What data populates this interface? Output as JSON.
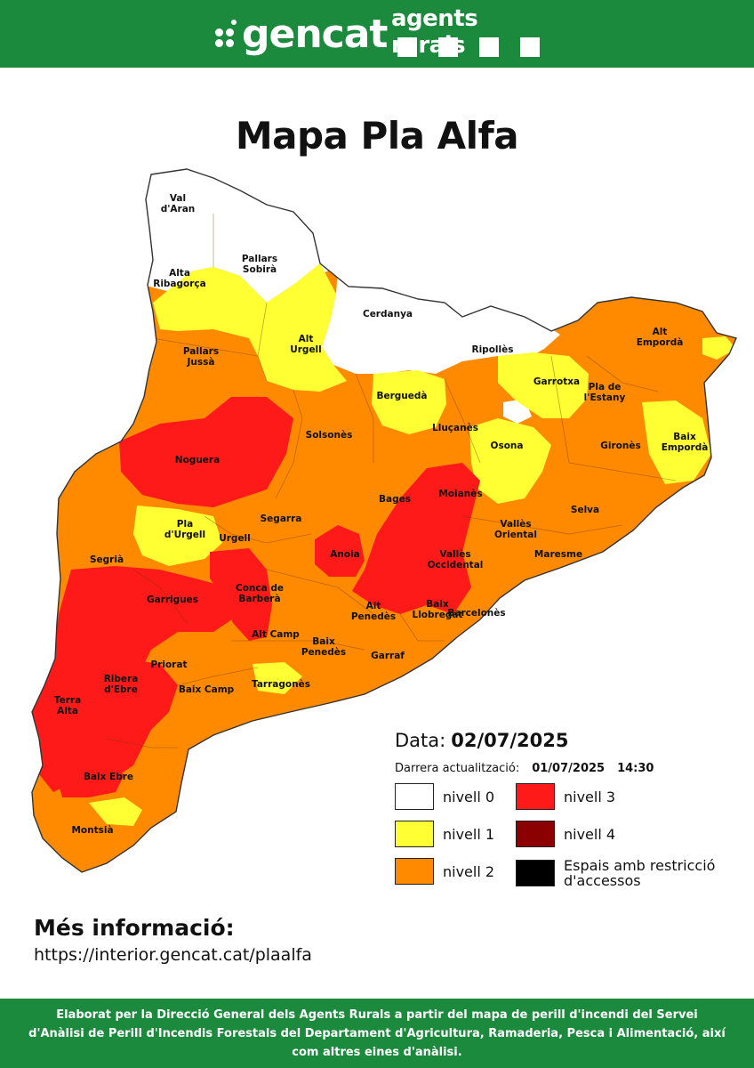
{
  "header": {
    "gencat_logo_text": "gencat",
    "agents_logo_text": "agents rurals"
  },
  "title": "Mapa Pla Alfa",
  "date": {
    "label": "Data:",
    "value": "02/07/2025",
    "update_label": "Darrera actualització:",
    "update_date": "01/07/2025",
    "update_time": "14:30"
  },
  "legend": [
    {
      "label": "nivell 0",
      "color": "#ffffff"
    },
    {
      "label": "nivell 1",
      "color": "#ffff33"
    },
    {
      "label": "nivell 2",
      "color": "#ff8a00"
    },
    {
      "label": "nivell 3",
      "color": "#ff1a1a"
    },
    {
      "label": "nivell 4",
      "color": "#8b0000"
    },
    {
      "label": "Espais amb restricció d'accessos",
      "color": "#000000"
    }
  ],
  "more_info": {
    "title": "Més informació:",
    "url": "https://interior.gencat.cat/plaalfa"
  },
  "footer": {
    "text": "Elaborat per la Direcció General dels Agents Rurals a partir del mapa de perill d'incendi del Servei d'Anàlisi de Perill d'Incendis Forestals del Departament d'Agricultura, Ramaderia, Pesca i Alimentació, així com altres eines d'anàlisi."
  },
  "map": {
    "regions": [
      {
        "name": "Val d'Aran",
        "lines": [
          "Val",
          "d'Aran"
        ]
      },
      {
        "name": "Pallars Sobirà",
        "lines": [
          "Pallars",
          "Sobirà"
        ]
      },
      {
        "name": "Alta Ribagorça",
        "lines": [
          "Alta",
          "Ribagorça"
        ]
      },
      {
        "name": "Cerdanya",
        "lines": [
          "Cerdanya"
        ]
      },
      {
        "name": "Alt Urgell",
        "lines": [
          "Alt",
          "Urgell"
        ]
      },
      {
        "name": "Ripollès",
        "lines": [
          "Ripollès"
        ]
      },
      {
        "name": "Alt Empordà",
        "lines": [
          "Alt",
          "Empordà"
        ]
      },
      {
        "name": "Pallars Jussà",
        "lines": [
          "Pallars",
          "Jussà"
        ]
      },
      {
        "name": "Berguedà",
        "lines": [
          "Berguedà"
        ]
      },
      {
        "name": "Garrotxa",
        "lines": [
          "Garrotxa"
        ]
      },
      {
        "name": "Pla de l'Estany",
        "lines": [
          "Pla de",
          "l'Estany"
        ]
      },
      {
        "name": "Solsonès",
        "lines": [
          "Solsonès"
        ]
      },
      {
        "name": "Lluçanès",
        "lines": [
          "Lluçanès"
        ]
      },
      {
        "name": "Osona",
        "lines": [
          "Osona"
        ]
      },
      {
        "name": "Gironès",
        "lines": [
          "Gironès"
        ]
      },
      {
        "name": "Baix Empordà",
        "lines": [
          "Baix",
          "Empordà"
        ]
      },
      {
        "name": "Noguera",
        "lines": [
          "Noguera"
        ]
      },
      {
        "name": "Bages",
        "lines": [
          "Bages"
        ]
      },
      {
        "name": "Moianès",
        "lines": [
          "Moianès"
        ]
      },
      {
        "name": "Selva",
        "lines": [
          "Selva"
        ]
      },
      {
        "name": "Segarra",
        "lines": [
          "Segarra"
        ]
      },
      {
        "name": "Pla d'Urgell",
        "lines": [
          "Pla",
          "d'Urgell"
        ]
      },
      {
        "name": "Urgell",
        "lines": [
          "Urgell"
        ]
      },
      {
        "name": "Vallès Oriental",
        "lines": [
          "Vallès",
          "Oriental"
        ]
      },
      {
        "name": "Segrià",
        "lines": [
          "Segrià"
        ]
      },
      {
        "name": "Anoia",
        "lines": [
          "Anoia"
        ]
      },
      {
        "name": "Maresme",
        "lines": [
          "Maresme"
        ]
      },
      {
        "name": "Vallès Occidental",
        "lines": [
          "Vallès",
          "Occidental"
        ]
      },
      {
        "name": "Garrigues",
        "lines": [
          "Garrigues"
        ]
      },
      {
        "name": "Conca de Barberà",
        "lines": [
          "Conca de",
          "Barberà"
        ]
      },
      {
        "name": "Alt Penedès",
        "lines": [
          "Alt",
          "Penedès"
        ]
      },
      {
        "name": "Baix Llobregat",
        "lines": [
          "Baix",
          "Llobregat"
        ]
      },
      {
        "name": "Barcelonès",
        "lines": [
          "Barcelonès"
        ]
      },
      {
        "name": "Alt Camp",
        "lines": [
          "Alt Camp"
        ]
      },
      {
        "name": "Baix Penedès",
        "lines": [
          "Baix",
          "Penedès"
        ]
      },
      {
        "name": "Garraf",
        "lines": [
          "Garraf"
        ]
      },
      {
        "name": "Priorat",
        "lines": [
          "Priorat"
        ]
      },
      {
        "name": "Ribera d'Ebre",
        "lines": [
          "Ribera",
          "d'Ebre"
        ]
      },
      {
        "name": "Baix Camp",
        "lines": [
          "Baix Camp"
        ]
      },
      {
        "name": "Tarragonès",
        "lines": [
          "Tarragonès"
        ]
      },
      {
        "name": "Terra Alta",
        "lines": [
          "Terra",
          "Alta"
        ]
      },
      {
        "name": "Baix Ebre",
        "lines": [
          "Baix Ebre"
        ]
      },
      {
        "name": "Montsià",
        "lines": [
          "Montsià"
        ]
      }
    ]
  }
}
